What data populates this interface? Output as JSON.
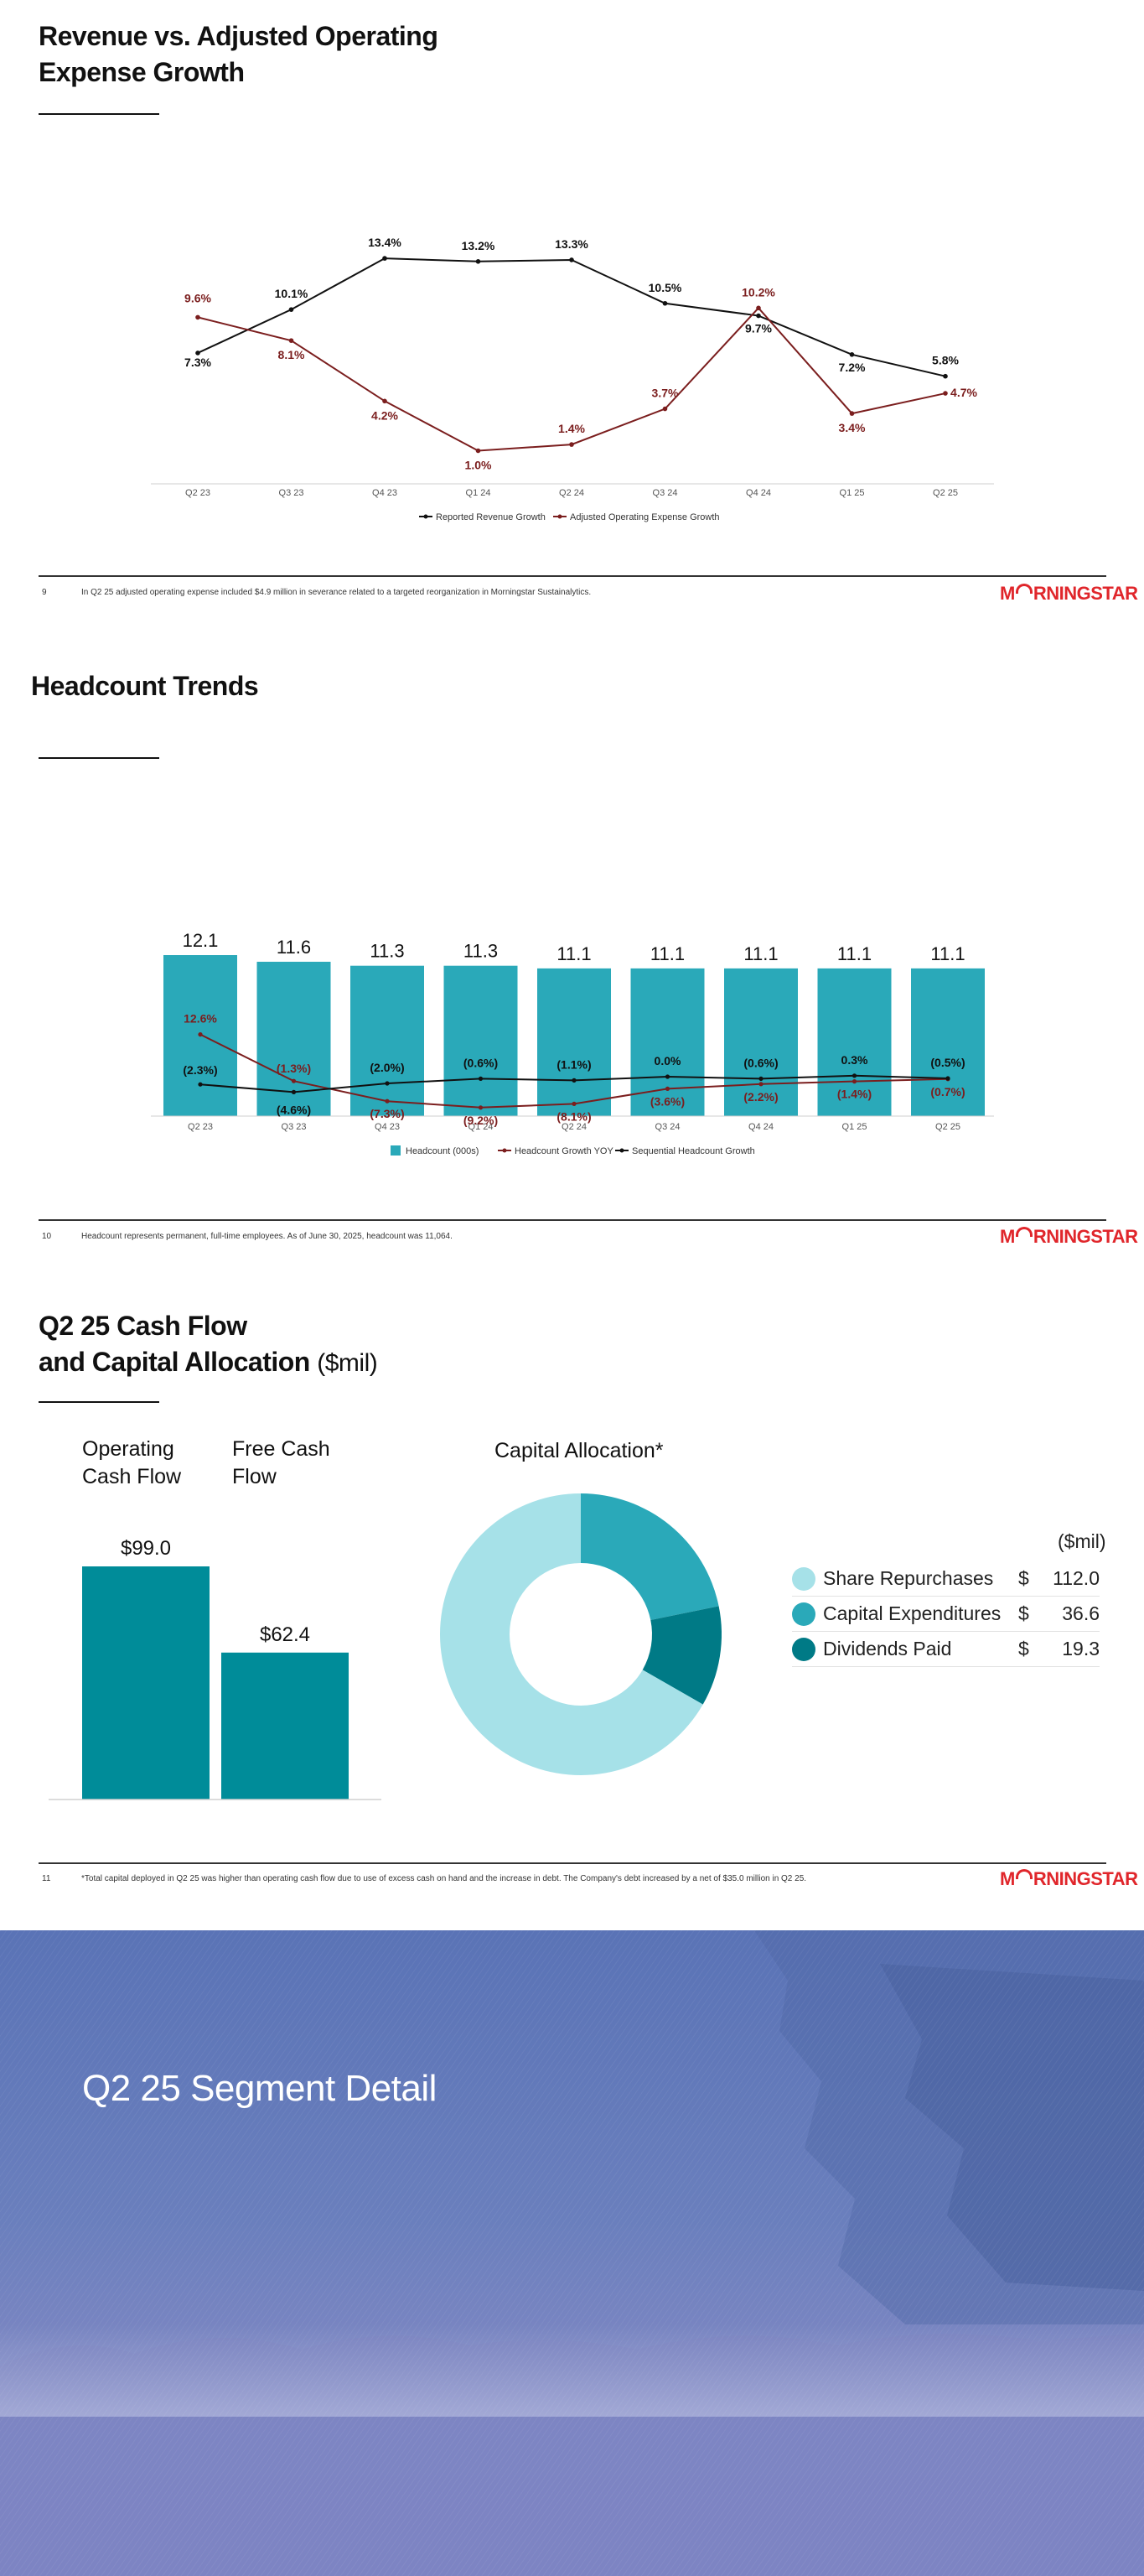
{
  "slide9": {
    "title_line1": "Revenue vs. Adjusted Operating",
    "title_line2": "Expense Growth",
    "page_number": "9",
    "footnote": "In Q2 25 adjusted operating expense included $4.9 million in severance related to a targeted reorganization in Morningstar Sustainalytics.",
    "legend": [
      "Reported Revenue Growth",
      "Adjusted Operating Expense Growth"
    ]
  },
  "slide10": {
    "title": "Headcount Trends",
    "page_number": "10",
    "footnote": "Headcount represents permanent, full-time employees. As of June 30, 2025, headcount was 11,064.",
    "legend": [
      "Headcount (000s)",
      "Headcount Growth YOY",
      "Sequential Headcount Growth"
    ]
  },
  "slide11": {
    "title_line1": "Q2 25 Cash Flow",
    "title_line2": "and Capital Allocation",
    "title_suffix": "($mil)",
    "page_number": "11",
    "footnote": "*Total capital deployed in Q2 25 was higher than operating cash flow due to use of excess cash on hand and the increase in debt. The Company's debt increased by a net of $35.0 million in Q2 25.",
    "operating_cash_flow_label": [
      "Operating",
      "Cash Flow"
    ],
    "free_cash_flow_label": [
      "Free Cash",
      "Flow"
    ],
    "capital_allocation_title": "Capital Allocation*",
    "unit_label": "($mil)",
    "currency_symbol": "$",
    "allocation_items": [
      {
        "label": "Share Repurchases",
        "value": "112.0",
        "color": "#a6e1e8"
      },
      {
        "label": "Capital Expenditures",
        "value": "36.6",
        "color": "#2aa9b9"
      },
      {
        "label": "Dividends Paid",
        "value": "19.3",
        "color": "#007a86"
      }
    ]
  },
  "slide12": {
    "title": "Q2 25 Segment Detail"
  },
  "logo": {
    "left": "M",
    "right": "RNINGSTAR",
    "color": "#e0262b"
  },
  "chart_data": [
    {
      "type": "line",
      "categories": [
        "Q2 23",
        "Q3 23",
        "Q4 23",
        "Q1 24",
        "Q2 24",
        "Q3 24",
        "Q4 24",
        "Q1 25",
        "Q2 25"
      ],
      "series": [
        {
          "name": "Reported Revenue Growth",
          "color": "#111111",
          "values": [
            7.3,
            10.1,
            13.4,
            13.2,
            13.3,
            10.5,
            9.7,
            7.2,
            5.8
          ],
          "labels": [
            "7.3%",
            "10.1%",
            "13.4%",
            "13.2%",
            "13.3%",
            "10.5%",
            "9.7%",
            "7.2%",
            "5.8%"
          ]
        },
        {
          "name": "Adjusted Operating Expense Growth",
          "color": "#7b1e1e",
          "values": [
            9.6,
            8.1,
            4.2,
            1.0,
            1.4,
            3.7,
            10.2,
            3.4,
            4.7
          ],
          "labels": [
            "9.6%",
            "8.1%",
            "4.2%",
            "1.0%",
            "1.4%",
            "3.7%",
            "10.2%",
            "3.4%",
            "4.7%"
          ]
        }
      ],
      "ylim": [
        0,
        14
      ],
      "legend_position": "bottom"
    },
    {
      "type": "bar",
      "categories": [
        "Q2 23",
        "Q3 23",
        "Q4 23",
        "Q1 24",
        "Q2 24",
        "Q3 24",
        "Q4 24",
        "Q1 25",
        "Q2 25"
      ],
      "series": [
        {
          "name": "Headcount (000s)",
          "color": "#2aa9b9",
          "values": [
            12.1,
            11.6,
            11.3,
            11.3,
            11.1,
            11.1,
            11.1,
            11.1,
            11.1
          ],
          "labels": [
            "12.1",
            "11.6",
            "11.3",
            "11.3",
            "11.1",
            "11.1",
            "11.1",
            "11.1",
            "11.1"
          ]
        },
        {
          "name": "Headcount Growth YOY",
          "color": "#7b1e1e",
          "type": "line",
          "values": [
            12.6,
            -1.3,
            -7.3,
            -9.2,
            -8.1,
            -3.6,
            -2.2,
            -1.4,
            -0.7
          ],
          "labels": [
            "12.6%",
            "(1.3%)",
            "(7.3%)",
            "(9.2%)",
            "(8.1%)",
            "(3.6%)",
            "(2.2%)",
            "(1.4%)",
            "(0.7%)"
          ]
        },
        {
          "name": "Sequential Headcount Growth",
          "color": "#111111",
          "type": "line",
          "values": [
            -2.3,
            -4.6,
            -2.0,
            -0.6,
            -1.1,
            0.0,
            -0.6,
            0.3,
            -0.5
          ],
          "labels": [
            "(2.3%)",
            "(4.6%)",
            "(2.0%)",
            "(0.6%)",
            "(1.1%)",
            "0.0%",
            "(0.6%)",
            "0.3%",
            "(0.5%)"
          ]
        }
      ],
      "legend_position": "bottom"
    },
    {
      "type": "bar",
      "categories": [
        "Operating Cash Flow",
        "Free Cash Flow"
      ],
      "values": [
        99.0,
        62.4
      ],
      "labels": [
        "$99.0",
        "$62.4"
      ],
      "color": "#008c99"
    },
    {
      "type": "pie",
      "title": "Capital Allocation*",
      "categories": [
        "Share Repurchases",
        "Capital Expenditures",
        "Dividends Paid"
      ],
      "values": [
        112.0,
        36.6,
        19.3
      ],
      "colors": [
        "#a6e1e8",
        "#2aa9b9",
        "#007a86"
      ],
      "legend_position": "right"
    }
  ]
}
